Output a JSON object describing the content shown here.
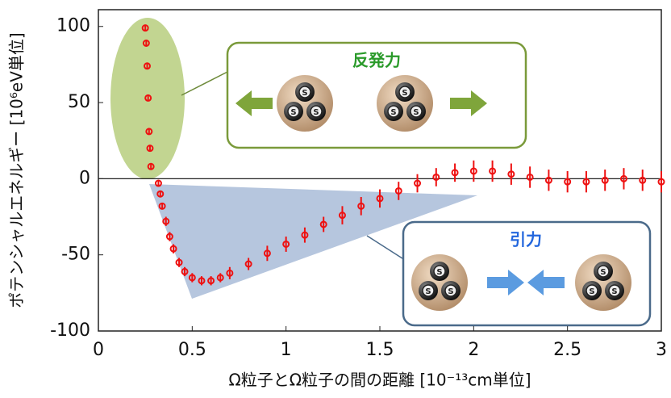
{
  "chart_data": {
    "type": "scatter",
    "xlabel": "Ω粒子とΩ粒子の間の距離 [10⁻¹³cm単位]",
    "ylabel": "ポテンシャルエネルギー [10⁶eV単位]",
    "annotations": [
      "反発力",
      "引力"
    ],
    "particle_label": "S",
    "color": "#ee1111",
    "x": [
      0.25,
      0.255,
      0.26,
      0.265,
      0.27,
      0.275,
      0.28,
      0.32,
      0.33,
      0.34,
      0.36,
      0.38,
      0.4,
      0.43,
      0.46,
      0.5,
      0.55,
      0.6,
      0.65,
      0.7,
      0.8,
      0.9,
      1.0,
      1.1,
      1.2,
      1.3,
      1.4,
      1.5,
      1.6,
      1.7,
      1.8,
      1.9,
      2.0,
      2.1,
      2.2,
      2.3,
      2.4,
      2.5,
      2.6,
      2.7,
      2.8,
      2.9,
      3.0
    ],
    "values": [
      99,
      89,
      74,
      53,
      31,
      20,
      8,
      -3,
      -10,
      -18,
      -28,
      -38,
      -46,
      -55,
      -61,
      -65,
      -67,
      -67,
      -65,
      -62,
      -56,
      -49,
      -43,
      -37,
      -30,
      -24,
      -18,
      -13,
      -8,
      -3,
      1,
      4,
      5,
      5,
      3,
      1,
      -1,
      -2,
      -2,
      -1,
      0,
      -1,
      -2
    ],
    "errors": [
      2,
      2,
      2,
      2,
      2,
      2,
      2,
      2,
      2,
      2,
      3,
      3,
      3,
      3,
      3,
      3,
      3,
      3,
      3,
      4,
      4,
      5,
      5,
      5,
      5,
      6,
      6,
      6,
      6,
      6,
      6,
      6,
      7,
      7,
      7,
      7,
      7,
      7,
      7,
      7,
      7,
      7,
      7
    ],
    "xlim": [
      0,
      3
    ],
    "xticks": [
      0,
      0.5,
      1,
      1.5,
      2,
      2.5,
      3
    ],
    "ylim": [
      -100,
      111
    ],
    "yticks": [
      -100,
      -50,
      0,
      50,
      100
    ],
    "zero_line": true
  }
}
